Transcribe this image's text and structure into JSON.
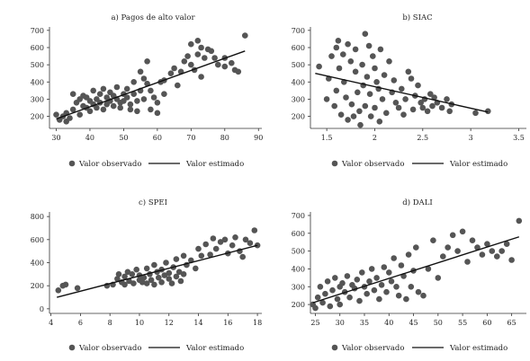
{
  "colors": {
    "point": "#555555",
    "line": "#111111",
    "axis": "#333333"
  },
  "chart_data": [
    {
      "type": "scatter",
      "title": "a) Pagos de alto valor",
      "xlabel": "",
      "ylabel": "",
      "xlim": [
        28,
        91
      ],
      "ylim": [
        130,
        720
      ],
      "xticks": [
        30,
        40,
        50,
        60,
        70,
        80,
        90
      ],
      "yticks": [
        200,
        300,
        400,
        500,
        600,
        700
      ],
      "fit": {
        "x0": 30,
        "y0": 185,
        "x1": 86,
        "y1": 580
      },
      "series": [
        {
          "name": "Valor observado",
          "x": [
            30,
            31,
            32,
            33,
            33,
            34,
            35,
            35,
            36,
            37,
            37,
            38,
            38,
            39,
            39,
            40,
            40,
            41,
            41,
            42,
            42,
            43,
            43,
            44,
            44,
            45,
            45,
            46,
            46,
            47,
            47,
            48,
            48,
            49,
            49,
            50,
            50,
            51,
            51,
            52,
            52,
            53,
            53,
            54,
            54,
            55,
            55,
            56,
            56,
            57,
            57,
            58,
            58,
            59,
            60,
            60,
            61,
            62,
            62,
            64,
            65,
            66,
            67,
            68,
            69,
            70,
            70,
            71,
            72,
            72,
            73,
            73,
            74,
            75,
            76,
            77,
            78,
            80,
            80,
            82,
            83,
            84,
            86
          ],
          "y": [
            210,
            180,
            200,
            220,
            170,
            190,
            330,
            240,
            280,
            210,
            300,
            260,
            320,
            250,
            310,
            230,
            290,
            270,
            350,
            300,
            250,
            330,
            280,
            360,
            240,
            310,
            270,
            290,
            340,
            260,
            320,
            300,
            370,
            280,
            250,
            330,
            290,
            360,
            310,
            240,
            270,
            400,
            330,
            290,
            230,
            350,
            460,
            420,
            300,
            520,
            390,
            240,
            350,
            310,
            280,
            220,
            400,
            330,
            410,
            450,
            480,
            380,
            460,
            520,
            550,
            500,
            620,
            470,
            560,
            640,
            430,
            600,
            540,
            590,
            580,
            540,
            500,
            540,
            490,
            510,
            470,
            460,
            670
          ]
        },
        {
          "name": "Valor estimado"
        }
      ]
    },
    {
      "type": "scatter",
      "title": "b) SIAC",
      "xlabel": "",
      "ylabel": "",
      "xlim": [
        1.33,
        3.58
      ],
      "ylim": [
        130,
        720
      ],
      "xticks": [
        1.5,
        2,
        2.5,
        3,
        3.5
      ],
      "yticks": [
        200,
        300,
        400,
        500,
        600,
        700
      ],
      "fit": {
        "x0": 1.38,
        "y0": 450,
        "x1": 3.18,
        "y1": 225
      },
      "series": [
        {
          "name": "Valor observado",
          "x": [
            1.42,
            1.5,
            1.52,
            1.55,
            1.58,
            1.6,
            1.6,
            1.62,
            1.63,
            1.65,
            1.67,
            1.68,
            1.7,
            1.72,
            1.72,
            1.75,
            1.76,
            1.78,
            1.8,
            1.8,
            1.82,
            1.84,
            1.85,
            1.87,
            1.88,
            1.9,
            1.9,
            1.92,
            1.94,
            1.95,
            1.96,
            1.98,
            2.0,
            2.0,
            2.02,
            2.04,
            2.05,
            2.06,
            2.08,
            2.1,
            2.12,
            2.15,
            2.18,
            2.2,
            2.22,
            2.25,
            2.28,
            2.3,
            2.32,
            2.35,
            2.38,
            2.4,
            2.42,
            2.45,
            2.48,
            2.5,
            2.52,
            2.55,
            2.58,
            2.6,
            2.62,
            2.65,
            2.7,
            2.75,
            2.78,
            2.8,
            3.05,
            3.18
          ],
          "y": [
            490,
            300,
            420,
            550,
            260,
            600,
            350,
            640,
            480,
            210,
            560,
            400,
            310,
            180,
            620,
            520,
            270,
            200,
            460,
            590,
            340,
            230,
            150,
            500,
            380,
            260,
            680,
            430,
            610,
            330,
            200,
            550,
            480,
            250,
            400,
            360,
            170,
            590,
            300,
            440,
            220,
            520,
            340,
            410,
            280,
            250,
            360,
            210,
            300,
            460,
            420,
            240,
            320,
            380,
            280,
            250,
            300,
            230,
            330,
            260,
            310,
            280,
            250,
            300,
            230,
            270,
            220,
            230
          ]
        },
        {
          "name": "Valor estimado"
        }
      ]
    },
    {
      "type": "scatter",
      "title": "c) SPEI",
      "xlabel": "",
      "ylabel": "",
      "xlim": [
        3.9,
        18.3
      ],
      "ylim": [
        -40,
        840
      ],
      "xticks": [
        4,
        6,
        8,
        10,
        12,
        14,
        16,
        18
      ],
      "yticks": [
        0,
        200,
        400,
        600,
        800
      ],
      "fit": {
        "x0": 4.4,
        "y0": 100,
        "x1": 18.0,
        "y1": 550
      },
      "series": [
        {
          "name": "Valor observado",
          "x": [
            4.5,
            4.8,
            5.0,
            5.8,
            7.8,
            8.2,
            8.5,
            8.6,
            8.8,
            9.0,
            9.0,
            9.2,
            9.3,
            9.5,
            9.6,
            9.8,
            10.0,
            10.0,
            10.2,
            10.3,
            10.5,
            10.5,
            10.7,
            10.8,
            11.0,
            11.0,
            11.2,
            11.3,
            11.5,
            11.5,
            11.7,
            11.8,
            12.0,
            12.0,
            12.2,
            12.3,
            12.5,
            12.5,
            12.7,
            12.8,
            13.0,
            13.0,
            13.2,
            13.5,
            13.8,
            14.0,
            14.2,
            14.5,
            14.8,
            15.0,
            15.2,
            15.5,
            15.8,
            16.0,
            16.3,
            16.5,
            16.8,
            17.0,
            17.2,
            17.5,
            17.8,
            18.0
          ],
          "y": [
            160,
            200,
            210,
            180,
            200,
            210,
            260,
            300,
            230,
            280,
            210,
            320,
            240,
            300,
            220,
            340,
            250,
            290,
            230,
            270,
            350,
            220,
            300,
            250,
            380,
            210,
            320,
            270,
            230,
            340,
            290,
            400,
            260,
            310,
            220,
            360,
            280,
            430,
            320,
            240,
            300,
            460,
            380,
            420,
            350,
            520,
            460,
            560,
            470,
            610,
            520,
            580,
            600,
            480,
            550,
            620,
            500,
            450,
            600,
            570,
            680,
            550
          ]
        },
        {
          "name": "Valor estimado"
        }
      ]
    },
    {
      "type": "scatter",
      "title": "d) DALI",
      "xlabel": "",
      "ylabel": "",
      "xlim": [
        24,
        68
      ],
      "ylim": [
        150,
        720
      ],
      "xticks": [
        25,
        30,
        35,
        40,
        45,
        50,
        55,
        60,
        65
      ],
      "yticks": [
        200,
        300,
        400,
        500,
        600,
        700
      ],
      "fit": {
        "x0": 24.5,
        "y0": 210,
        "x1": 66.5,
        "y1": 580
      },
      "series": [
        {
          "name": "Valor observado",
          "x": [
            24.5,
            25,
            25.5,
            26,
            26.5,
            27,
            27.5,
            28,
            28.5,
            29,
            29.5,
            30,
            30,
            30.5,
            31,
            31.5,
            32,
            32.5,
            33,
            33.5,
            34,
            34.5,
            35,
            35.5,
            36,
            36.5,
            37,
            37.5,
            38,
            38.5,
            39,
            39.5,
            40,
            40.5,
            41,
            41.5,
            42,
            42.5,
            43,
            43.5,
            44,
            44.5,
            45,
            45.5,
            46,
            47,
            48,
            49,
            50,
            51,
            52,
            53,
            54,
            55,
            56,
            57,
            58,
            59,
            60,
            61,
            62,
            63,
            64,
            65,
            66.5
          ],
          "y": [
            200,
            180,
            240,
            300,
            210,
            260,
            330,
            190,
            280,
            350,
            230,
            300,
            200,
            320,
            270,
            360,
            240,
            310,
            290,
            340,
            220,
            380,
            300,
            260,
            330,
            400,
            280,
            350,
            230,
            310,
            410,
            270,
            380,
            330,
            460,
            300,
            250,
            420,
            360,
            230,
            480,
            300,
            390,
            520,
            270,
            250,
            400,
            560,
            350,
            470,
            520,
            590,
            500,
            610,
            440,
            560,
            520,
            480,
            540,
            500,
            470,
            500,
            540,
            450,
            670
          ]
        },
        {
          "name": "Valor estimado"
        }
      ]
    }
  ]
}
